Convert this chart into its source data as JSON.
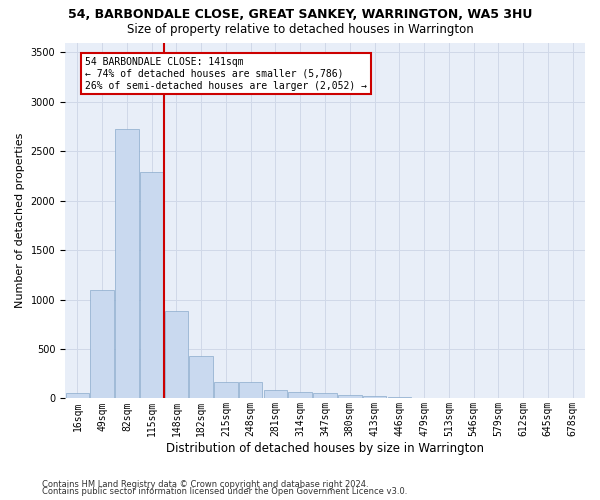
{
  "title": "54, BARBONDALE CLOSE, GREAT SANKEY, WARRINGTON, WA5 3HU",
  "subtitle": "Size of property relative to detached houses in Warrington",
  "xlabel": "Distribution of detached houses by size in Warrington",
  "ylabel": "Number of detached properties",
  "footnote1": "Contains HM Land Registry data © Crown copyright and database right 2024.",
  "footnote2": "Contains public sector information licensed under the Open Government Licence v3.0.",
  "annotation_line1": "54 BARBONDALE CLOSE: 141sqm",
  "annotation_line2": "← 74% of detached houses are smaller (5,786)",
  "annotation_line3": "26% of semi-detached houses are larger (2,052) →",
  "red_line_color": "#cc0000",
  "bar_color": "#c9d9ef",
  "bar_edge_color": "#89aacc",
  "grid_color": "#d0d8e8",
  "bg_color": "#e8eef8",
  "categories": [
    "16sqm",
    "49sqm",
    "82sqm",
    "115sqm",
    "148sqm",
    "182sqm",
    "215sqm",
    "248sqm",
    "281sqm",
    "314sqm",
    "347sqm",
    "380sqm",
    "413sqm",
    "446sqm",
    "479sqm",
    "513sqm",
    "546sqm",
    "579sqm",
    "612sqm",
    "645sqm",
    "678sqm"
  ],
  "values": [
    55,
    1100,
    2730,
    2290,
    880,
    430,
    170,
    165,
    90,
    65,
    50,
    30,
    20,
    10,
    5,
    3,
    2,
    2,
    1,
    1,
    1
  ],
  "red_line_bin_index": 4,
  "ylim": [
    0,
    3600
  ],
  "yticks": [
    0,
    500,
    1000,
    1500,
    2000,
    2500,
    3000,
    3500
  ],
  "title_fontsize": 9,
  "subtitle_fontsize": 8.5,
  "ylabel_fontsize": 8,
  "xlabel_fontsize": 8.5,
  "tick_fontsize": 7,
  "annotation_fontsize": 7,
  "footnote_fontsize": 6
}
